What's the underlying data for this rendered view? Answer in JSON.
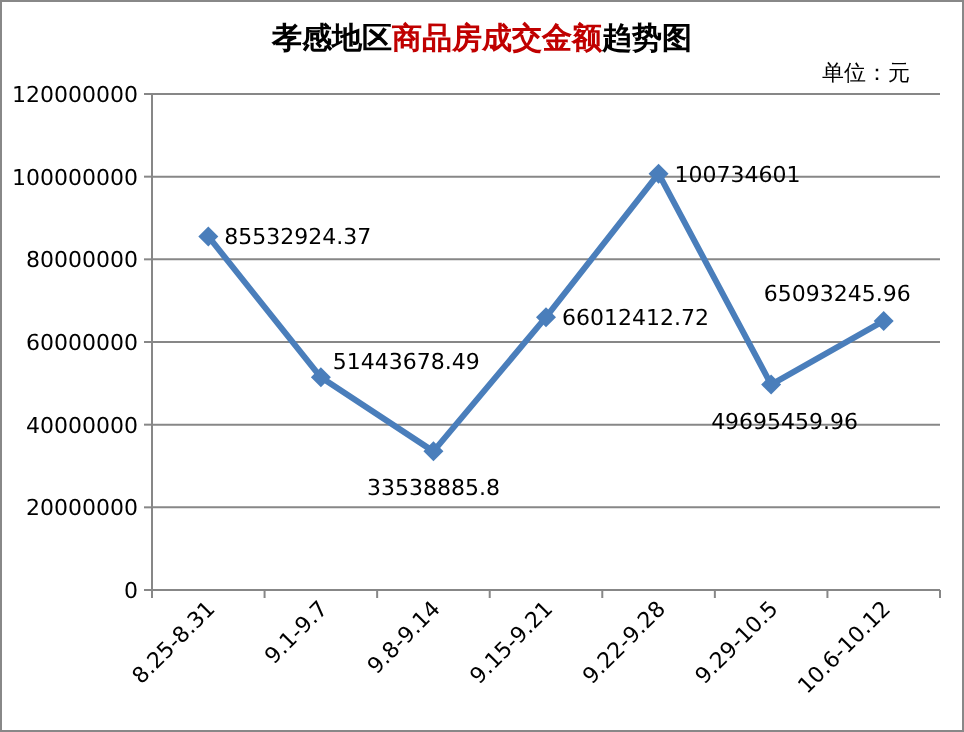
{
  "chart_data": {
    "type": "line",
    "title": "孝感地区**商品房成交金额**趋势图",
    "annotations": [
      "单位：元"
    ],
    "categories": [
      "8.25-8.31",
      "9.1-9.7",
      "9.8-9.14",
      "9.15-9.21",
      "9.22-9.28",
      "9.29-10.5",
      "10.6-10.12"
    ],
    "values": [
      85532924.37,
      51443678.49,
      33538885.8,
      66012412.72,
      100734601,
      49695459.96,
      65093245.96
    ],
    "value_labels": [
      "85532924.37",
      "51443678.49",
      "33538885.8",
      "66012412.72",
      "100734601",
      "49695459.96",
      "65093245.96"
    ],
    "color": "#4a7ebb",
    "marker": "diamond",
    "grid": "y",
    "ylim": [
      0,
      120000000
    ],
    "yticks": [
      0,
      20000000,
      40000000,
      60000000,
      80000000,
      100000000,
      120000000
    ]
  }
}
